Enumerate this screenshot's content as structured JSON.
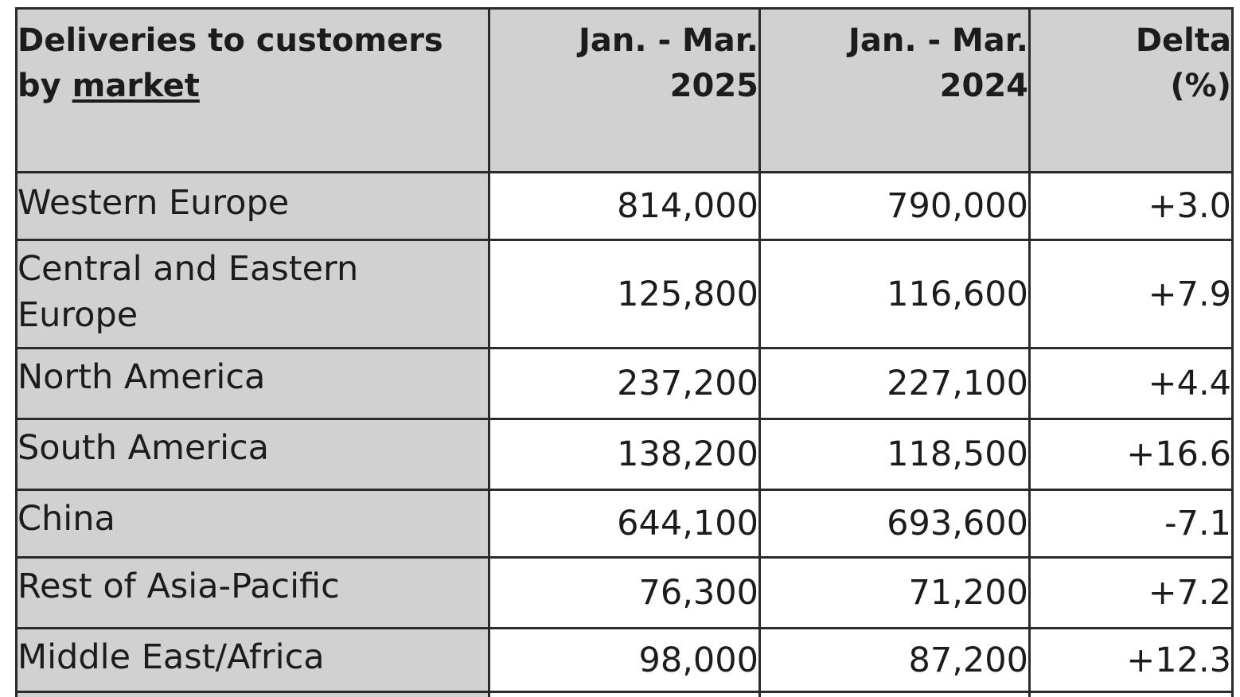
{
  "table": {
    "header": {
      "market_line1": "Deliveries to customers",
      "market_line2_prefix": "by ",
      "market_line2_underlined": "market",
      "col_2025_line1": "Jan. - Mar.",
      "col_2025_line2": "2025",
      "col_2024_line1": "Jan. - Mar.",
      "col_2024_line2": "2024",
      "col_delta_line1": "Delta",
      "col_delta_line2": "(%)"
    },
    "rows": [
      {
        "market_line1": "Western Europe",
        "market_line2": "",
        "q1_2025": "814,000",
        "q1_2024": "790,000",
        "delta": "+3.0"
      },
      {
        "market_line1": "Central and Eastern",
        "market_line2": "Europe",
        "q1_2025": "125,800",
        "q1_2024": "116,600",
        "delta": "+7.9"
      },
      {
        "market_line1": "North America",
        "market_line2": "",
        "q1_2025": "237,200",
        "q1_2024": "227,100",
        "delta": "+4.4"
      },
      {
        "market_line1": "South America",
        "market_line2": "",
        "q1_2025": "138,200",
        "q1_2024": "118,500",
        "delta": "+16.6"
      },
      {
        "market_line1": "China",
        "market_line2": "",
        "q1_2025": "644,100",
        "q1_2024": "693,600",
        "delta": "-7.1"
      },
      {
        "market_line1": "Rest of Asia-Pacific",
        "market_line2": "",
        "q1_2025": "76,300",
        "q1_2024": "71,200",
        "delta": "+7.2"
      },
      {
        "market_line1": "Middle East/Africa",
        "market_line2": "",
        "q1_2025": "98,000",
        "q1_2024": "87,200",
        "delta": "+12.3"
      }
    ]
  },
  "colors": {
    "header_background": "#d2d1d1",
    "market_cell_background": "#d2d1d1",
    "value_cell_background": "#ffffff",
    "border": "#2a2a2a",
    "text": "#1c1c1c"
  }
}
